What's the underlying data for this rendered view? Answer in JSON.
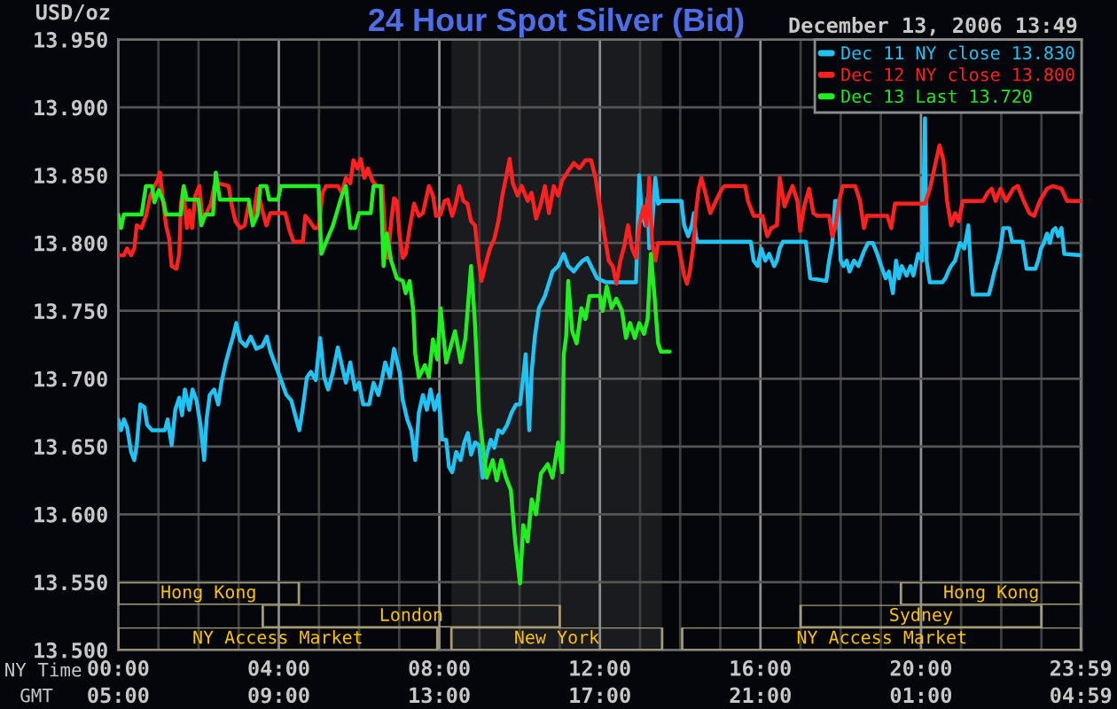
{
  "chart_data": [
    {
      "type": "line",
      "title": "24 Hour Spot Silver (Bid)",
      "subtitle": "December 13, 2006 13:49",
      "ylabel": "USD/oz",
      "xlabel": "NY Time",
      "x2label": "GMT",
      "xlim": [
        0,
        24
      ],
      "xticks": [
        {
          "value": 0,
          "label": "00:00"
        },
        {
          "value": 1,
          "label": null
        },
        {
          "value": 2,
          "label": null
        },
        {
          "value": 3,
          "label": null
        },
        {
          "value": 4,
          "label": "04:00"
        },
        {
          "value": 5,
          "label": null
        },
        {
          "value": 6,
          "label": null
        },
        {
          "value": 7,
          "label": null
        },
        {
          "value": 8,
          "label": "08:00"
        },
        {
          "value": 9,
          "label": null
        },
        {
          "value": 10,
          "label": null
        },
        {
          "value": 11,
          "label": null
        },
        {
          "value": 12,
          "label": "12:00"
        },
        {
          "value": 13,
          "label": null
        },
        {
          "value": 14,
          "label": null
        },
        {
          "value": 15,
          "label": null
        },
        {
          "value": 16,
          "label": "16:00"
        },
        {
          "value": 17,
          "label": null
        },
        {
          "value": 18,
          "label": null
        },
        {
          "value": 19,
          "label": null
        },
        {
          "value": 20,
          "label": "20:00"
        },
        {
          "value": 21,
          "label": null
        },
        {
          "value": 22,
          "label": null
        },
        {
          "value": 23,
          "label": null
        },
        {
          "value": 23.983,
          "label": "23:59"
        }
      ],
      "x2lim": [
        "2006-12-13T05:00",
        "2006-12-14T05:00"
      ],
      "x2ticks": [
        {
          "value": "2006-12-13T05:00",
          "label": "05:00"
        },
        {
          "value": "2006-12-13T09:00",
          "label": "09:00"
        },
        {
          "value": "2006-12-13T13:00",
          "label": "13:00"
        },
        {
          "value": "2006-12-13T17:00",
          "label": "17:00"
        },
        {
          "value": "2006-12-13T21:00",
          "label": "21:00"
        },
        {
          "value": "2006-12-14T01:00",
          "label": "01:00"
        },
        {
          "value": "2006-12-14T04:59",
          "label": "04:59"
        }
      ],
      "ylim": [
        13.5,
        13.95
      ],
      "yticks": [
        {
          "value": 13.5,
          "label": "13.500"
        },
        {
          "value": 13.55,
          "label": "13.550"
        },
        {
          "value": 13.6,
          "label": "13.600"
        },
        {
          "value": 13.65,
          "label": "13.650"
        },
        {
          "value": 13.7,
          "label": "13.700"
        },
        {
          "value": 13.75,
          "label": "13.750"
        },
        {
          "value": 13.8,
          "label": "13.800"
        },
        {
          "value": 13.85,
          "label": "13.850"
        },
        {
          "value": 13.9,
          "label": "13.900"
        },
        {
          "value": 13.95,
          "label": "13.950"
        }
      ],
      "grid": true,
      "legend": "top right",
      "bands": [
        {
          "axis": "x",
          "from": 8.3,
          "to": 13.55,
          "color": "#1a1b1e"
        }
      ],
      "series": [
        {
          "name": "Dec 11 NY close 13.830",
          "color": "#20c4f4",
          "x": [
            0.0,
            0.07,
            0.14,
            0.22,
            0.32,
            0.4,
            0.46,
            0.55,
            0.65,
            0.72,
            0.84,
            1.16,
            1.23,
            1.33,
            1.42,
            1.52,
            1.59,
            1.66,
            1.77,
            1.85,
            1.95,
            2.05,
            2.14,
            2.2,
            2.28,
            2.39,
            2.49,
            2.57,
            2.68,
            2.78,
            2.86,
            2.94,
            3.04,
            3.18,
            3.3,
            3.44,
            3.59,
            3.7,
            3.79,
            3.98,
            4.08,
            4.19,
            4.31,
            4.41,
            4.51,
            4.6,
            4.7,
            4.8,
            4.92,
            5.03,
            5.13,
            5.23,
            5.35,
            5.47,
            5.57,
            5.67,
            5.78,
            5.9,
            6.0,
            6.1,
            6.25,
            6.36,
            6.48,
            6.58,
            6.65,
            6.77,
            6.87,
            7.01,
            7.09,
            7.2,
            7.3,
            7.4,
            7.49,
            7.59,
            7.69,
            7.78,
            7.88,
            7.98,
            8.07,
            8.17,
            8.24,
            8.32,
            8.42,
            8.53,
            8.62,
            8.71,
            8.79,
            8.89,
            8.99,
            9.08,
            9.18,
            9.28,
            9.37,
            9.47,
            9.57,
            9.69,
            9.8,
            9.91,
            10.01,
            10.09,
            10.15,
            10.24,
            10.3,
            10.38,
            10.48,
            10.63,
            10.82,
            10.96,
            11.1,
            11.21,
            11.35,
            11.45,
            11.57,
            11.68,
            11.78,
            11.93,
            12.15,
            12.9,
            12.98,
            13.04,
            13.13,
            13.19,
            13.23,
            13.3,
            13.38,
            13.45,
            13.52,
            14.03,
            14.1,
            14.2,
            14.29,
            14.34,
            14.39,
            14.43,
            15.76,
            15.83,
            15.93,
            16.02,
            16.12,
            16.22,
            16.34,
            16.41,
            16.48,
            16.56,
            17.13,
            17.24,
            17.64,
            17.71,
            17.79,
            17.86,
            17.93,
            18.0,
            18.07,
            18.15,
            18.22,
            18.33,
            18.44,
            18.58,
            18.68,
            18.8,
            18.91,
            19.01,
            19.12,
            19.2,
            19.3,
            19.38,
            19.45,
            19.52,
            19.64,
            19.74,
            19.81,
            19.93,
            20.03,
            20.1,
            20.14,
            20.22,
            20.53,
            20.61,
            20.68,
            20.75,
            20.85,
            20.97,
            21.08,
            21.18,
            21.23,
            21.29,
            21.69,
            21.76,
            21.83,
            21.91,
            21.98,
            22.05,
            22.2,
            22.27,
            22.53,
            22.63,
            22.85,
            22.92,
            22.99,
            23.06,
            23.14,
            23.21,
            23.28,
            23.35,
            23.42,
            23.5,
            23.57,
            23.98
          ],
          "values": [
            13.67,
            13.662,
            13.67,
            13.664,
            13.646,
            13.64,
            13.651,
            13.681,
            13.679,
            13.666,
            13.662,
            13.662,
            13.67,
            13.651,
            13.677,
            13.686,
            13.673,
            13.692,
            13.677,
            13.692,
            13.684,
            13.666,
            13.64,
            13.67,
            13.688,
            13.692,
            13.681,
            13.697,
            13.712,
            13.723,
            13.731,
            13.741,
            13.728,
            13.724,
            13.731,
            13.722,
            13.724,
            13.731,
            13.72,
            13.705,
            13.697,
            13.688,
            13.684,
            13.673,
            13.662,
            13.679,
            13.701,
            13.705,
            13.699,
            13.73,
            13.701,
            13.692,
            13.705,
            13.723,
            13.71,
            13.697,
            13.712,
            13.692,
            13.697,
            13.681,
            13.681,
            13.697,
            13.688,
            13.701,
            13.712,
            13.701,
            13.722,
            13.705,
            13.684,
            13.67,
            13.662,
            13.64,
            13.675,
            13.688,
            13.677,
            13.692,
            13.677,
            13.688,
            13.655,
            13.655,
            13.635,
            13.631,
            13.646,
            13.64,
            13.653,
            13.66,
            13.644,
            13.653,
            13.651,
            13.627,
            13.644,
            13.655,
            13.649,
            13.662,
            13.66,
            13.666,
            13.675,
            13.681,
            13.681,
            13.701,
            13.718,
            13.662,
            13.705,
            13.731,
            13.752,
            13.761,
            13.779,
            13.783,
            13.792,
            13.783,
            13.779,
            13.783,
            13.787,
            13.789,
            13.783,
            13.774,
            13.771,
            13.771,
            13.85,
            13.822,
            13.813,
            13.833,
            13.796,
            13.813,
            13.848,
            13.829,
            13.831,
            13.831,
            13.813,
            13.805,
            13.813,
            13.822,
            13.805,
            13.801,
            13.801,
            13.787,
            13.783,
            13.796,
            13.787,
            13.792,
            13.783,
            13.787,
            13.796,
            13.801,
            13.801,
            13.774,
            13.772,
            13.787,
            13.8,
            13.831,
            13.831,
            13.787,
            13.783,
            13.787,
            13.779,
            13.787,
            13.783,
            13.794,
            13.8,
            13.8,
            13.792,
            13.783,
            13.774,
            13.779,
            13.763,
            13.787,
            13.774,
            13.783,
            13.776,
            13.783,
            13.776,
            13.792,
            13.787,
            13.892,
            13.787,
            13.771,
            13.771,
            13.774,
            13.779,
            13.783,
            13.787,
            13.8,
            13.796,
            13.813,
            13.787,
            13.762,
            13.762,
            13.77,
            13.779,
            13.787,
            13.796,
            13.811,
            13.811,
            13.801,
            13.801,
            13.781,
            13.781,
            13.787,
            13.796,
            13.8,
            13.807,
            13.8,
            13.809,
            13.811,
            13.805,
            13.811,
            13.792,
            13.791
          ]
        },
        {
          "name": "Dec 12 NY close 13.800",
          "color": "#ff2020",
          "x": [
            0.0,
            0.14,
            0.22,
            0.32,
            0.4,
            0.46,
            0.58,
            0.69,
            0.8,
            0.9,
            0.98,
            1.04,
            1.1,
            1.19,
            1.27,
            1.33,
            1.45,
            1.52,
            1.56,
            1.62,
            1.71,
            1.77,
            1.84,
            1.92,
            2.02,
            2.1,
            2.2,
            2.31,
            2.39,
            2.49,
            2.75,
            2.82,
            2.92,
            3.04,
            3.15,
            3.25,
            3.35,
            3.47,
            3.59,
            3.69,
            3.79,
            4.16,
            4.27,
            4.37,
            4.6,
            4.66,
            4.77,
            4.89,
            4.99,
            5.09,
            5.18,
            5.47,
            5.57,
            5.67,
            5.78,
            5.86,
            5.96,
            6.04,
            6.13,
            6.22,
            6.33,
            6.44,
            6.58,
            6.65,
            6.72,
            6.8,
            6.87,
            6.94,
            7.01,
            7.09,
            7.16,
            7.26,
            7.37,
            7.49,
            7.59,
            7.74,
            7.84,
            7.92,
            8.03,
            8.13,
            8.21,
            8.32,
            8.41,
            8.5,
            8.6,
            8.7,
            8.79,
            8.89,
            8.97,
            9.05,
            9.14,
            9.26,
            9.37,
            9.47,
            9.57,
            9.66,
            9.75,
            9.83,
            9.95,
            10.05,
            10.2,
            10.3,
            10.41,
            10.53,
            10.63,
            10.73,
            10.85,
            10.96,
            11.06,
            11.21,
            11.35,
            11.49,
            11.64,
            11.78,
            11.89,
            12.0,
            12.12,
            12.22,
            12.32,
            12.41,
            12.51,
            12.61,
            12.7,
            12.8,
            12.9,
            12.98,
            13.09,
            13.16,
            13.23,
            13.3,
            13.38,
            13.45,
            13.95,
            14.03,
            14.1,
            14.17,
            14.24,
            14.32,
            14.39,
            14.46,
            14.53,
            14.6,
            14.75,
            14.89,
            15.04,
            15.11,
            15.62,
            15.69,
            15.83,
            16.05,
            16.17,
            16.27,
            16.41,
            16.48,
            16.6,
            16.7,
            16.8,
            16.92,
            16.99,
            17.09,
            17.21,
            17.32,
            17.42,
            17.71,
            17.79,
            17.86,
            17.96,
            18.05,
            18.36,
            18.48,
            18.58,
            18.65,
            19.16,
            19.26,
            19.35,
            20.1,
            20.22,
            20.32,
            20.46,
            20.56,
            20.65,
            20.75,
            20.85,
            20.94,
            21.04,
            21.55,
            21.66,
            21.76,
            21.86,
            21.98,
            22.12,
            22.3,
            22.41,
            22.56,
            22.7,
            22.82,
            22.96,
            23.14,
            23.28,
            23.5,
            23.64,
            23.98
          ],
          "values": [
            13.791,
            13.791,
            13.796,
            13.791,
            13.796,
            13.813,
            13.811,
            13.82,
            13.835,
            13.842,
            13.846,
            13.852,
            13.835,
            13.813,
            13.803,
            13.783,
            13.781,
            13.792,
            13.829,
            13.84,
            13.811,
            13.824,
            13.811,
            13.835,
            13.842,
            13.818,
            13.822,
            13.829,
            13.842,
            13.844,
            13.842,
            13.829,
            13.816,
            13.811,
            13.813,
            13.829,
            13.817,
            13.84,
            13.824,
            13.813,
            13.822,
            13.822,
            13.809,
            13.801,
            13.801,
            13.82,
            13.816,
            13.811,
            13.811,
            13.837,
            13.842,
            13.842,
            13.837,
            13.848,
            13.844,
            13.861,
            13.855,
            13.862,
            13.848,
            13.855,
            13.846,
            13.842,
            13.842,
            13.805,
            13.789,
            13.816,
            13.833,
            13.831,
            13.805,
            13.789,
            13.792,
            13.811,
            13.829,
            13.82,
            13.822,
            13.842,
            13.835,
            13.82,
            13.821,
            13.831,
            13.832,
            13.82,
            13.829,
            13.842,
            13.831,
            13.829,
            13.816,
            13.813,
            13.789,
            13.772,
            13.783,
            13.796,
            13.803,
            13.816,
            13.835,
            13.848,
            13.862,
            13.844,
            13.835,
            13.842,
            13.831,
            13.837,
            13.818,
            13.829,
            13.842,
            13.822,
            13.842,
            13.835,
            13.846,
            13.853,
            13.859,
            13.855,
            13.861,
            13.861,
            13.848,
            13.827,
            13.805,
            13.787,
            13.783,
            13.77,
            13.787,
            13.798,
            13.813,
            13.796,
            13.789,
            13.813,
            13.827,
            13.813,
            13.848,
            13.8,
            13.787,
            13.8,
            13.8,
            13.787,
            13.776,
            13.77,
            13.779,
            13.796,
            13.822,
            13.84,
            13.848,
            13.84,
            13.822,
            13.831,
            13.84,
            13.842,
            13.842,
            13.831,
            13.82,
            13.82,
            13.805,
            13.811,
            13.813,
            13.848,
            13.827,
            13.835,
            13.842,
            13.831,
            13.809,
            13.827,
            13.84,
            13.822,
            13.82,
            13.82,
            13.805,
            13.811,
            13.831,
            13.842,
            13.842,
            13.831,
            13.811,
            13.82,
            13.82,
            13.811,
            13.829,
            13.829,
            13.84,
            13.853,
            13.872,
            13.861,
            13.831,
            13.813,
            13.822,
            13.816,
            13.831,
            13.831,
            13.837,
            13.84,
            13.831,
            13.84,
            13.831,
            13.84,
            13.842,
            13.831,
            13.822,
            13.82,
            13.831,
            13.84,
            13.842,
            13.84,
            13.831,
            13.831
          ]
        },
        {
          "name": "Dec 13 Last 13.720",
          "color": "#20f020",
          "x": [
            0.0,
            0.07,
            0.14,
            0.58,
            0.69,
            0.84,
            0.9,
            1.01,
            1.13,
            1.19,
            1.56,
            1.63,
            1.71,
            2.0,
            2.07,
            2.17,
            2.36,
            2.43,
            2.53,
            3.25,
            3.35,
            3.47,
            3.54,
            3.69,
            3.76,
            3.98,
            4.05,
            4.99,
            5.06,
            5.21,
            5.35,
            5.57,
            5.67,
            5.78,
            5.9,
            6.0,
            6.29,
            6.36,
            6.54,
            6.61,
            6.69,
            6.8,
            6.94,
            7.09,
            7.16,
            7.26,
            7.35,
            7.4,
            7.49,
            7.64,
            7.74,
            7.84,
            7.95,
            8.03,
            8.17,
            8.39,
            8.53,
            8.65,
            8.79,
            8.89,
            8.99,
            9.08,
            9.18,
            9.33,
            9.43,
            9.54,
            9.66,
            9.78,
            9.89,
            10.01,
            10.09,
            10.2,
            10.3,
            10.41,
            10.53,
            10.7,
            10.82,
            10.96,
            11.06,
            11.1,
            11.16,
            11.21,
            11.31,
            11.42,
            11.54,
            11.64,
            11.74,
            12.0,
            12.07,
            12.17,
            12.29,
            12.41,
            12.55,
            12.65,
            12.75,
            12.87,
            12.98,
            13.1,
            13.19,
            13.27,
            13.36,
            13.45,
            13.52,
            13.74
          ],
          "values": [
            13.821,
            13.811,
            13.821,
            13.821,
            13.842,
            13.842,
            13.83,
            13.839,
            13.83,
            13.821,
            13.821,
            13.842,
            13.832,
            13.832,
            13.813,
            13.821,
            13.821,
            13.852,
            13.832,
            13.832,
            13.813,
            13.821,
            13.842,
            13.842,
            13.832,
            13.832,
            13.842,
            13.842,
            13.792,
            13.803,
            13.813,
            13.835,
            13.842,
            13.811,
            13.811,
            13.822,
            13.822,
            13.842,
            13.842,
            13.783,
            13.807,
            13.787,
            13.774,
            13.772,
            13.763,
            13.772,
            13.75,
            13.718,
            13.701,
            13.71,
            13.701,
            13.729,
            13.714,
            13.752,
            13.712,
            13.735,
            13.712,
            13.73,
            13.783,
            13.74,
            13.675,
            13.651,
            13.627,
            13.64,
            13.625,
            13.64,
            13.627,
            13.618,
            13.58,
            13.549,
            13.592,
            13.58,
            13.611,
            13.6,
            13.63,
            13.637,
            13.627,
            13.653,
            13.631,
            13.718,
            13.731,
            13.772,
            13.735,
            13.726,
            13.752,
            13.744,
            13.761,
            13.761,
            13.75,
            13.768,
            13.752,
            13.759,
            13.75,
            13.73,
            13.741,
            13.73,
            13.741,
            13.733,
            13.744,
            13.792,
            13.761,
            13.726,
            13.72,
            13.72
          ]
        }
      ]
    },
    {
      "type": "bar",
      "orientation": "horizontal",
      "categories": [
        null
      ],
      "xlim": [
        0,
        24
      ],
      "tick_labels": false,
      "series": [
        {
          "color": "#a49c74",
          "base": [
            0
          ],
          "values": [
            4.5
          ],
          "value_labels": [
            "Hong Kong"
          ]
        },
        {
          "color": "#a49c74",
          "base": [
            19.5
          ],
          "values": [
            4.5
          ],
          "value_labels": [
            "Hong Kong"
          ]
        }
      ]
    },
    {
      "type": "bar",
      "orientation": "horizontal",
      "categories": [
        null
      ],
      "xlim": [
        0,
        24
      ],
      "tick_labels": false,
      "series": [
        {
          "color": "#a49c74",
          "base": [
            3.6
          ],
          "values": [
            7.4
          ],
          "value_labels": [
            "London"
          ]
        },
        {
          "color": "#a49c74",
          "base": [
            17
          ],
          "values": [
            6
          ],
          "value_labels": [
            "Sydney"
          ]
        }
      ]
    },
    {
      "type": "bar",
      "orientation": "horizontal",
      "categories": [
        null
      ],
      "xlim": [
        0,
        24
      ],
      "tick_labels": false,
      "series": [
        {
          "color": "#a49c74",
          "base": [
            0
          ],
          "values": [
            7.95
          ],
          "value_labels": [
            "NY Access Market"
          ]
        },
        {
          "color": "#a49c74",
          "base": [
            8.3
          ],
          "values": [
            5.25
          ],
          "value_labels": [
            "New York"
          ]
        },
        {
          "color": "#a49c74",
          "base": [
            14.05
          ],
          "values": [
            9.95
          ],
          "value_labels": [
            "NY Access Market"
          ]
        }
      ]
    }
  ]
}
